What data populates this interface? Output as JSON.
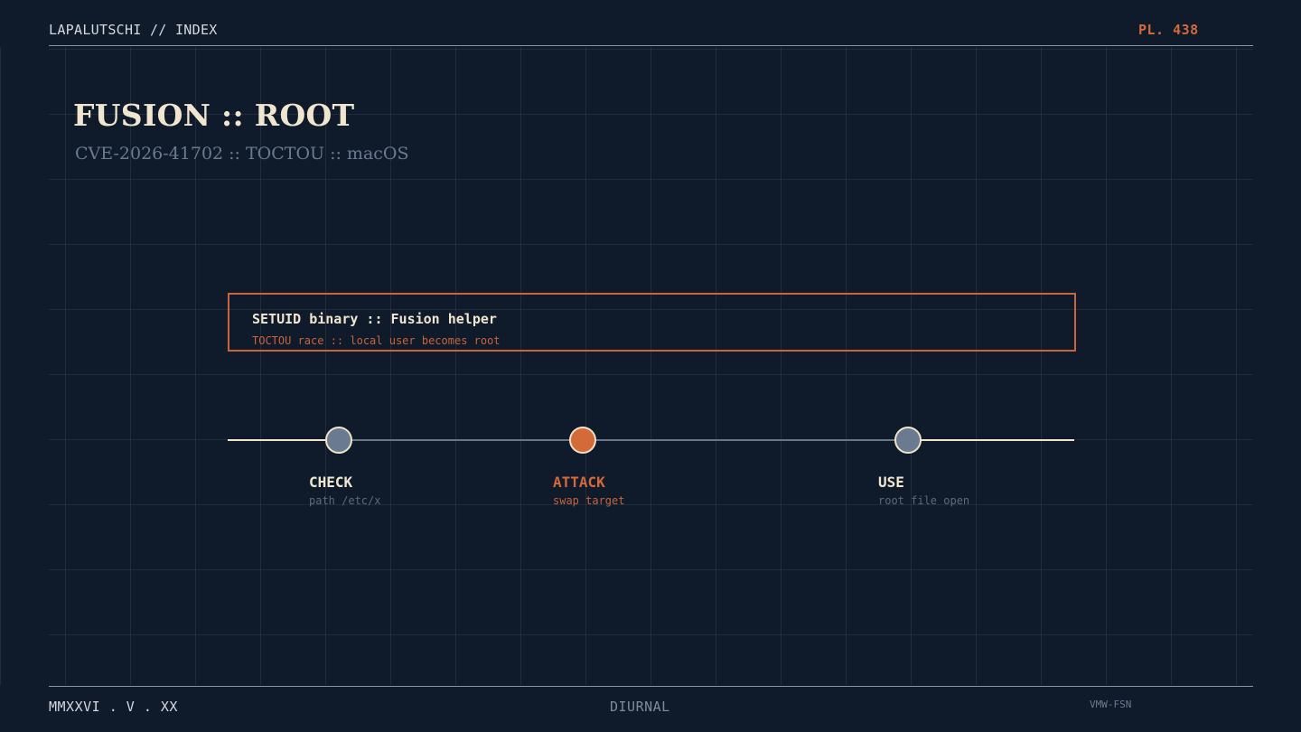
{
  "header": {
    "left": "LAPALUTSCHI // INDEX",
    "right": "PL. 438"
  },
  "title": "FUSION :: ROOT",
  "subtitle": "CVE-2026-41702 :: TOCTOU :: macOS",
  "callout": {
    "title": "SETUID binary :: Fusion helper",
    "subtitle": "TOCTOU race :: local user becomes root"
  },
  "steps": [
    {
      "label": "CHECK",
      "sub": "path /etc/x",
      "state": "normal"
    },
    {
      "label": "ATTACK",
      "sub": "swap target",
      "state": "highlight"
    },
    {
      "label": "USE",
      "sub": "root file open",
      "state": "normal"
    }
  ],
  "footer": {
    "left": "MMXXVI . V . XX",
    "center": "DIURNAL",
    "right": "VMW-FSN"
  },
  "colors": {
    "background": "#0f1a2b",
    "accent": "#d4693a",
    "cream": "#f0e6cf",
    "node": "#6a7a91",
    "muted": "#6b7b8f"
  }
}
